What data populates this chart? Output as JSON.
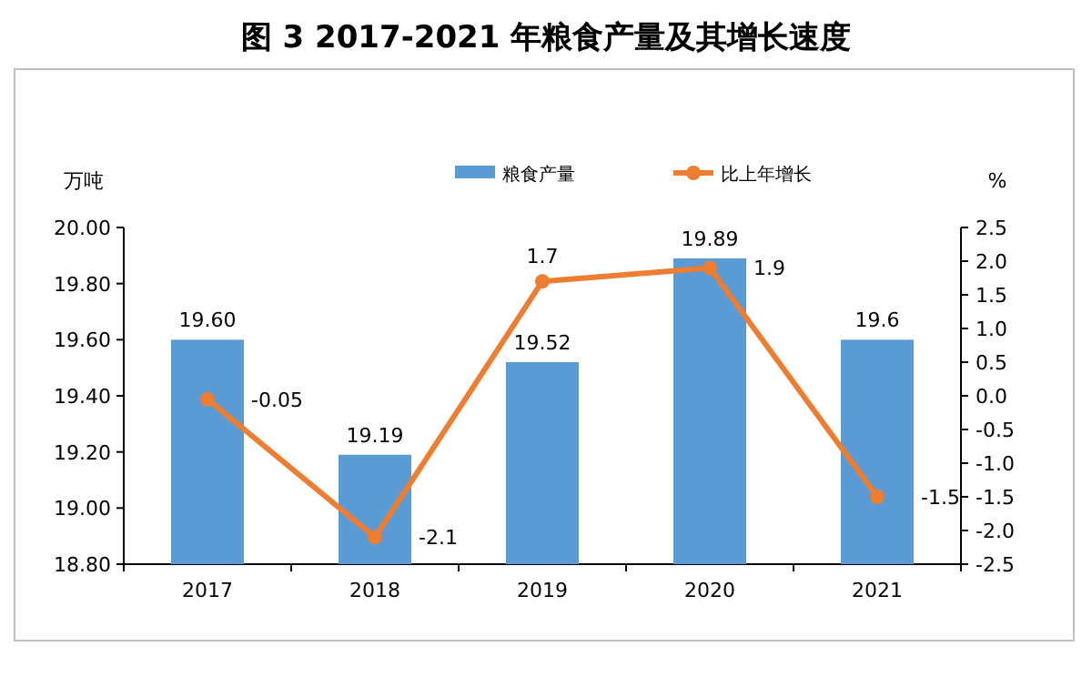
{
  "chart_data": {
    "type": "bar",
    "title": "图 3 2017-2021 年粮食产量及其增长速度",
    "ylabel": "万吨",
    "y2label": "%",
    "categories": [
      "2017",
      "2018",
      "2019",
      "2020",
      "2021"
    ],
    "series": [
      {
        "name": "粮食产量",
        "color": "#5b9bd5",
        "values": [
          19.6,
          19.19,
          19.52,
          19.89,
          19.6
        ],
        "value_labels": [
          "19.60",
          "19.19",
          "19.52",
          "19.89",
          "19.6"
        ]
      },
      {
        "name": "比上年增长",
        "type": "line",
        "axis": "y2",
        "color": "#ed7d31",
        "marker": "circle",
        "values": [
          -0.05,
          -2.1,
          1.7,
          1.9,
          -1.5
        ],
        "value_labels": [
          "-0.05",
          "-2.1",
          "1.7",
          "1.9",
          "-1.5"
        ]
      }
    ],
    "ylim": [
      18.8,
      20.0
    ],
    "yticks": [
      {
        "value": 18.8,
        "label": "18.80"
      },
      {
        "value": 19.0,
        "label": "19.00"
      },
      {
        "value": 19.2,
        "label": "19.20"
      },
      {
        "value": 19.4,
        "label": "19.40"
      },
      {
        "value": 19.6,
        "label": "19.60"
      },
      {
        "value": 19.8,
        "label": "19.80"
      },
      {
        "value": 20.0,
        "label": "20.00"
      }
    ],
    "y2lim": [
      -2.5,
      2.5
    ],
    "y2ticks": [
      {
        "value": -2.5,
        "label": "-2.5"
      },
      {
        "value": -2,
        "label": "-2.0"
      },
      {
        "value": -1.5,
        "label": "-1.5"
      },
      {
        "value": -1,
        "label": "-1.0"
      },
      {
        "value": -0.5,
        "label": "-0.5"
      },
      {
        "value": 0,
        "label": "0.0"
      },
      {
        "value": 0.5,
        "label": "0.5"
      },
      {
        "value": 1,
        "label": "1.0"
      },
      {
        "value": 1.5,
        "label": "1.5"
      },
      {
        "value": 2,
        "label": "2.0"
      },
      {
        "value": 2.5,
        "label": "2.5"
      }
    ],
    "legend": "top"
  }
}
